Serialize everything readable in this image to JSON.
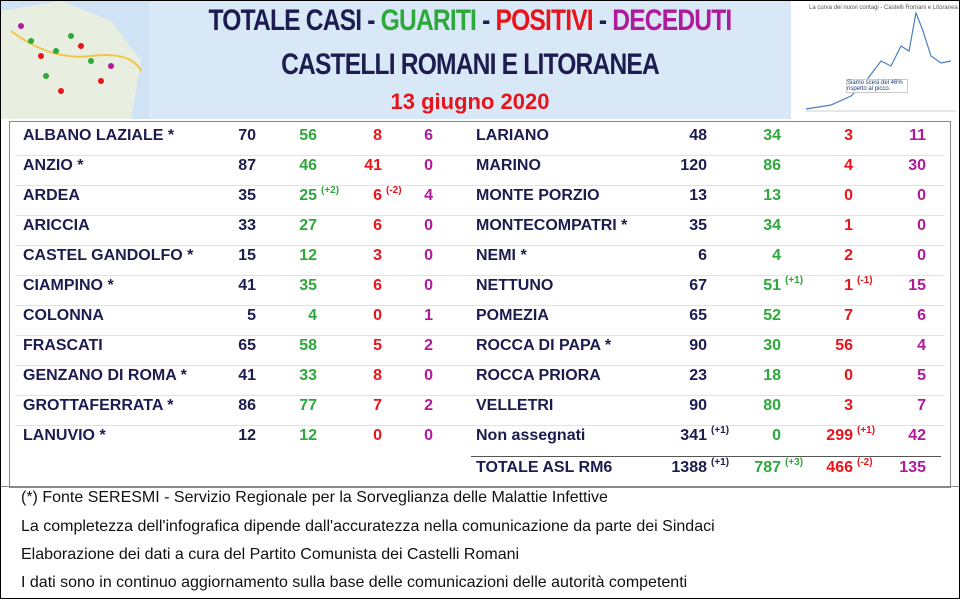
{
  "header": {
    "title_parts": [
      "TOTALE CASI",
      "GUARITI",
      "POSITIVI",
      "DECEDUTI"
    ],
    "separator": "-",
    "subtitle": "CASTELLI ROMANI E LITORANEA",
    "date": "13 giugno 2020",
    "thumbnail_title": "La curva dei nuovi contagi - Castelli Romani e Litoranea",
    "thumbnail_note": "Siamo scesi del 46% rispetto al picco."
  },
  "table": {
    "left": [
      {
        "name": "ALBANO LAZIALE *",
        "total": 70,
        "recovered": 56,
        "positive": 8,
        "deaths": 6
      },
      {
        "name": "ANZIO *",
        "total": 87,
        "recovered": 46,
        "positive": 41,
        "deaths": 0
      },
      {
        "name": "ARDEA",
        "total": 35,
        "recovered": 25,
        "recovered_delta": "(+2)",
        "positive": 6,
        "positive_delta": "(-2)",
        "deaths": 4
      },
      {
        "name": "ARICCIA",
        "total": 33,
        "recovered": 27,
        "positive": 6,
        "deaths": 0
      },
      {
        "name": "CASTEL GANDOLFO *",
        "total": 15,
        "recovered": 12,
        "positive": 3,
        "deaths": 0
      },
      {
        "name": "CIAMPINO *",
        "total": 41,
        "recovered": 35,
        "positive": 6,
        "deaths": 0
      },
      {
        "name": "COLONNA",
        "total": 5,
        "recovered": 4,
        "positive": 0,
        "deaths": 1
      },
      {
        "name": "FRASCATI",
        "total": 65,
        "recovered": 58,
        "positive": 5,
        "deaths": 2
      },
      {
        "name": "GENZANO DI ROMA *",
        "total": 41,
        "recovered": 33,
        "positive": 8,
        "deaths": 0
      },
      {
        "name": "GROTTAFERRATA *",
        "total": 86,
        "recovered": 77,
        "positive": 7,
        "deaths": 2
      },
      {
        "name": "LANUVIO *",
        "total": 12,
        "recovered": 12,
        "positive": 0,
        "deaths": 0
      }
    ],
    "right": [
      {
        "name": "LARIANO",
        "total": 48,
        "recovered": 34,
        "positive": 3,
        "deaths": 11
      },
      {
        "name": "MARINO",
        "total": 120,
        "recovered": 86,
        "positive": 4,
        "deaths": 30
      },
      {
        "name": "MONTE PORZIO",
        "total": 13,
        "recovered": 13,
        "positive": 0,
        "deaths": 0
      },
      {
        "name": "MONTECOMPATRI *",
        "total": 35,
        "recovered": 34,
        "positive": 1,
        "deaths": 0
      },
      {
        "name": "NEMI *",
        "total": 6,
        "recovered": 4,
        "positive": 2,
        "deaths": 0
      },
      {
        "name": "NETTUNO",
        "total": 67,
        "recovered": 51,
        "recovered_delta": "(+1)",
        "positive": 1,
        "positive_delta": "(-1)",
        "deaths": 15
      },
      {
        "name": "POMEZIA",
        "total": 65,
        "recovered": 52,
        "positive": 7,
        "deaths": 6
      },
      {
        "name": "ROCCA DI PAPA *",
        "total": 90,
        "recovered": 30,
        "positive": 56,
        "deaths": 4
      },
      {
        "name": "ROCCA PRIORA",
        "total": 23,
        "recovered": 18,
        "positive": 0,
        "deaths": 5
      },
      {
        "name": "VELLETRI",
        "total": 90,
        "recovered": 80,
        "positive": 3,
        "deaths": 7
      },
      {
        "name": "Non assegnati",
        "total": 341,
        "total_delta": "(+1)",
        "recovered": 0,
        "positive": 299,
        "positive_delta": "(+1)",
        "deaths": 42
      }
    ],
    "total": {
      "name": "TOTALE ASL RM6",
      "total": 1388,
      "total_delta": "(+1)",
      "recovered": 787,
      "recovered_delta": "(+3)",
      "positive": 466,
      "positive_delta": "(-2)",
      "deaths": 135
    }
  },
  "footer": [
    "(*) Fonte SERESMI - Servizio Regionale per la Sorveglianza delle Malattie Infettive",
    "La completezza dell'infografica dipende dall'accuratezza nella comunicazione da parte dei Sindaci",
    "Elaborazione dei dati a cura del Partito Comunista dei Castelli Romani",
    "I dati sono in continuo aggiornamento sulla base delle comunicazioni delle autorità competenti"
  ]
}
